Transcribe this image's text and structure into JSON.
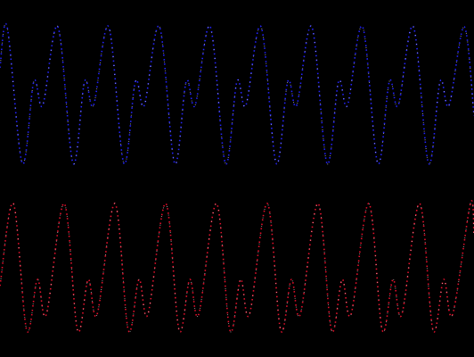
{
  "chart_data": [
    {
      "type": "line",
      "color": "#2323ff",
      "xlim": [
        0,
        532
      ],
      "ylim": [
        -1,
        1
      ],
      "x": [
        0,
        8,
        25,
        38,
        48,
        65,
        82,
        95,
        105,
        122,
        139,
        152,
        162,
        179,
        196,
        209,
        219,
        236,
        253,
        266,
        276,
        293,
        310,
        323,
        333,
        350,
        367,
        380,
        390,
        407,
        424,
        437,
        447,
        464,
        481,
        494,
        504,
        521,
        532
      ],
      "values": [
        0.4,
        1,
        -1,
        0.2,
        -0.15,
        1,
        -1,
        0.2,
        -0.15,
        1,
        -1,
        0.2,
        -0.15,
        1,
        -1,
        0.2,
        -0.15,
        1,
        -1,
        0.2,
        -0.15,
        1,
        -1,
        0.2,
        -0.15,
        1,
        -1,
        0.2,
        -0.15,
        1,
        -1,
        0.2,
        -0.15,
        1,
        -1,
        0.2,
        -0.15,
        1,
        -0.3
      ]
    },
    {
      "type": "line",
      "color": "#e8102c",
      "xlim": [
        0,
        532
      ],
      "ylim": [
        -1,
        1
      ],
      "x": [
        0,
        15,
        30,
        42,
        52,
        72,
        87,
        99,
        109,
        129,
        144,
        156,
        166,
        186,
        201,
        213,
        223,
        243,
        258,
        270,
        280,
        300,
        315,
        327,
        337,
        357,
        372,
        384,
        394,
        414,
        429,
        441,
        451,
        471,
        486,
        498,
        508,
        528,
        532
      ],
      "values": [
        -0.3,
        1,
        -1,
        -0.2,
        -0.75,
        1,
        -1,
        -0.2,
        -0.75,
        1,
        -1,
        -0.2,
        -0.75,
        1,
        -1,
        -0.2,
        -0.75,
        1,
        -1,
        -0.2,
        -0.75,
        1,
        -1,
        -0.2,
        -0.75,
        1,
        -1,
        -0.2,
        -0.75,
        1,
        -1,
        -0.2,
        -0.75,
        1,
        -1,
        -0.2,
        -0.75,
        1,
        0.5
      ]
    }
  ]
}
